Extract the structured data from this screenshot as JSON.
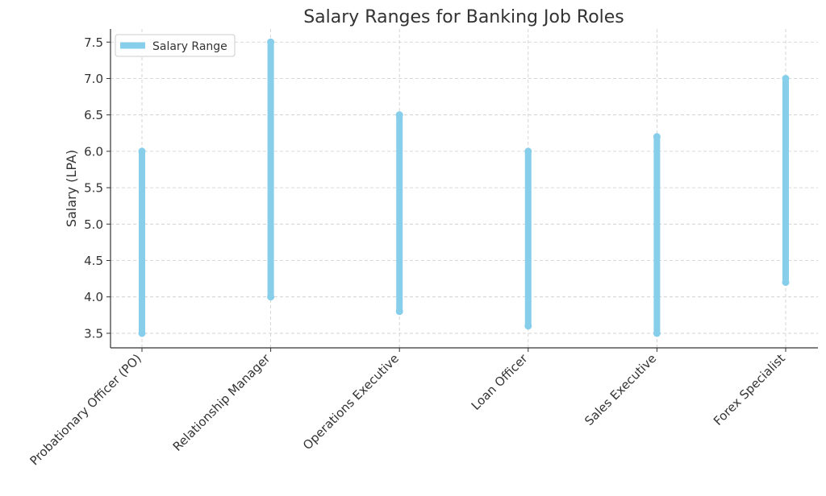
{
  "chart_data": {
    "type": "range",
    "title": "Salary Ranges for Banking Job Roles",
    "xlabel": "",
    "ylabel": "Salary (LPA)",
    "categories": [
      "Probationary Officer (PO)",
      "Relationship Manager",
      "Operations Executive",
      "Loan Officer",
      "Sales Executive",
      "Forex Specialist"
    ],
    "series": [
      {
        "name": "Salary Range",
        "low": [
          3.5,
          4.0,
          3.8,
          3.6,
          3.5,
          4.2
        ],
        "high": [
          6.0,
          7.5,
          6.5,
          6.0,
          6.2,
          7.0
        ]
      }
    ],
    "ylim": [
      3.3,
      7.68
    ],
    "yticks": [
      "3.5",
      "4.0",
      "4.5",
      "5.0",
      "5.5",
      "6.0",
      "6.5",
      "7.0",
      "7.5"
    ],
    "grid": true,
    "legend_position": "top-left",
    "colors": {
      "series": "#87CEEB",
      "grid": "#cccccc",
      "axis": "#333333",
      "text": "#333333"
    }
  }
}
